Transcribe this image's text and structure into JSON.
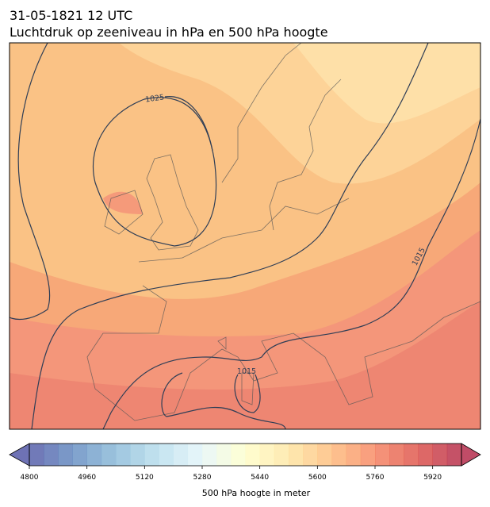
{
  "header": {
    "title_lines": [
      "31-05-1821 12 UTC",
      "Luchtdruk op zeeniveau in hPa en 500 hPa hoogte"
    ]
  },
  "map": {
    "contour_labels": [
      "1025",
      "1015",
      "1015"
    ]
  },
  "colorbar": {
    "label": "500 hPa hoogte in meter",
    "range": [
      4800,
      6000
    ],
    "step": 40,
    "ticks": [
      4800,
      4960,
      5120,
      5280,
      5440,
      5600,
      5760,
      5920
    ],
    "colors": [
      "#313695",
      "#4575b4",
      "#74add1",
      "#abd9e9",
      "#e0f3f8",
      "#ffffbf",
      "#fee090",
      "#fdae61",
      "#f46d43",
      "#d73027",
      "#a50026"
    ],
    "opacity": 0.7,
    "extend": "both"
  }
}
